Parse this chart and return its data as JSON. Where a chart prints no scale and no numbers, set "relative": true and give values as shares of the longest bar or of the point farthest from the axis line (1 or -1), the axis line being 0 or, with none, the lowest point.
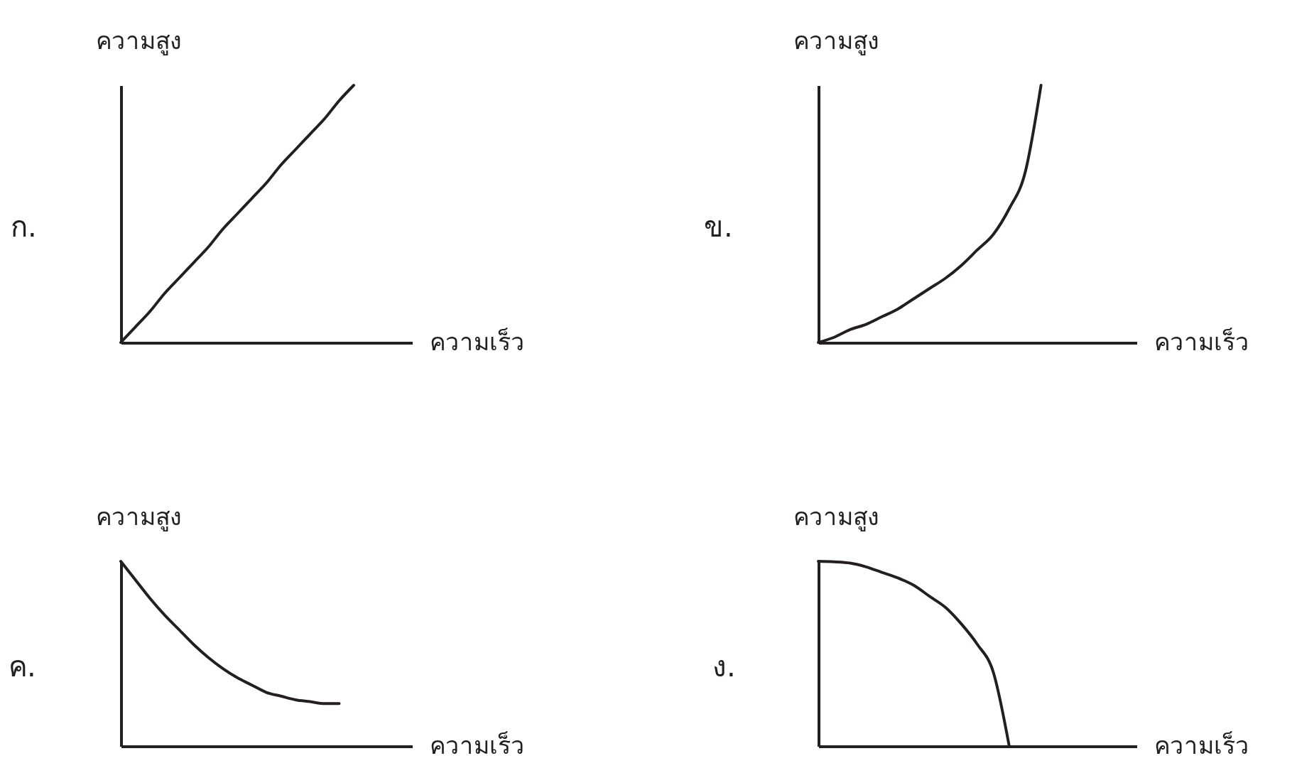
{
  "chart_data": [
    {
      "type": "line",
      "title": "ก.",
      "xlabel": "ความเร็ว",
      "ylabel": "ความสูง",
      "relative": true,
      "tick_labels": false,
      "categories": [
        null,
        null,
        null,
        null,
        null,
        null,
        null,
        null,
        null,
        null,
        null,
        null,
        null,
        null,
        null,
        null,
        null,
        null,
        null,
        null,
        null
      ],
      "series": [
        {
          "color": "#231f20",
          "values": [
            0,
            0.06,
            0.12,
            0.19,
            0.25,
            0.31,
            0.37,
            0.44,
            0.5,
            0.56,
            0.62,
            0.69,
            0.75,
            0.81,
            0.87,
            0.94,
            1,
            null,
            null,
            null,
            null
          ]
        }
      ]
    },
    {
      "type": "line",
      "title": "ข.",
      "xlabel": "ความเร็ว",
      "ylabel": "ความสูง",
      "relative": true,
      "tick_labels": false,
      "categories": [
        null,
        null,
        null,
        null,
        null,
        null,
        null,
        null,
        null,
        null,
        null,
        null,
        null,
        null,
        null,
        null,
        null,
        null,
        null,
        null,
        null
      ],
      "series": [
        {
          "color": "#231f20",
          "values": [
            0,
            0.02,
            0.05,
            0.07,
            0.1,
            0.13,
            0.17,
            0.21,
            0.25,
            0.3,
            0.36,
            0.42,
            0.52,
            0.66,
            1,
            null,
            null,
            null,
            null,
            null,
            null
          ]
        }
      ]
    },
    {
      "type": "line",
      "title": "ค.",
      "xlabel": "ความเร็ว",
      "ylabel": "ความสูง",
      "relative": true,
      "tick_labels": false,
      "categories": [
        null,
        null,
        null,
        null,
        null,
        null,
        null,
        null,
        null,
        null,
        null,
        null,
        null,
        null,
        null,
        null,
        null,
        null,
        null,
        null,
        null
      ],
      "series": [
        {
          "color": "#231f20",
          "values": [
            1,
            0.9,
            0.8,
            0.71,
            0.63,
            0.55,
            0.48,
            0.42,
            0.37,
            0.33,
            0.29,
            0.27,
            0.25,
            0.24,
            0.23,
            0.23,
            null,
            null,
            null,
            null,
            null
          ]
        }
      ]
    },
    {
      "type": "line",
      "title": "ง.",
      "xlabel": "ความเร็ว",
      "ylabel": "ความสูง",
      "relative": true,
      "tick_labels": false,
      "categories": [
        null,
        null,
        null,
        null,
        null,
        null,
        null,
        null,
        null,
        null,
        null,
        null,
        null,
        null,
        null,
        null,
        null,
        null,
        null,
        null,
        null
      ],
      "series": [
        {
          "color": "#231f20",
          "values": [
            1,
            0.997,
            0.99,
            0.97,
            0.94,
            0.91,
            0.87,
            0.81,
            0.75,
            0.66,
            0.55,
            0.4,
            0,
            null,
            null,
            null,
            null,
            null,
            null,
            null,
            null
          ]
        }
      ]
    }
  ]
}
